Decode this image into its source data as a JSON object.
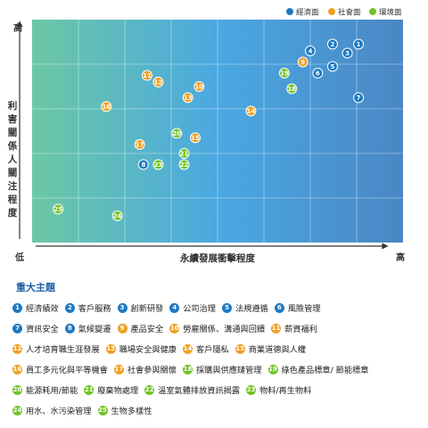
{
  "chart_data": {
    "type": "scatter",
    "ylabel": "利害關係人關注程度",
    "xlabel": "永續發展衝擊程度",
    "y_high_label": "高",
    "low_label": "低",
    "x_high_label": "高",
    "xlim": [
      0,
      100
    ],
    "ylim": [
      0,
      100
    ],
    "grid": true,
    "legend_position": "top-right",
    "legend": [
      {
        "name": "經濟面",
        "color": "#1d79c2"
      },
      {
        "name": "社會面",
        "color": "#efa024"
      },
      {
        "name": "環境面",
        "color": "#72c42a"
      }
    ],
    "points": [
      {
        "id": 1,
        "x": 88,
        "y": 89,
        "group": "economic"
      },
      {
        "id": 2,
        "x": 81,
        "y": 89,
        "group": "economic"
      },
      {
        "id": 3,
        "x": 85,
        "y": 85,
        "group": "economic"
      },
      {
        "id": 4,
        "x": 75,
        "y": 86,
        "group": "economic"
      },
      {
        "id": 5,
        "x": 81,
        "y": 79,
        "group": "economic"
      },
      {
        "id": 6,
        "x": 77,
        "y": 76,
        "group": "economic"
      },
      {
        "id": 7,
        "x": 88,
        "y": 65,
        "group": "economic"
      },
      {
        "id": 8,
        "x": 30,
        "y": 35,
        "group": "economic"
      },
      {
        "id": 9,
        "x": 73,
        "y": 81,
        "group": "social"
      },
      {
        "id": 10,
        "x": 45,
        "y": 70,
        "group": "social"
      },
      {
        "id": 11,
        "x": 31,
        "y": 75,
        "group": "social"
      },
      {
        "id": 12,
        "x": 34,
        "y": 72,
        "group": "social"
      },
      {
        "id": 13,
        "x": 42,
        "y": 65,
        "group": "social"
      },
      {
        "id": 14,
        "x": 59,
        "y": 59,
        "group": "social"
      },
      {
        "id": 15,
        "x": 44,
        "y": 47,
        "group": "social"
      },
      {
        "id": 16,
        "x": 20,
        "y": 61,
        "group": "social"
      },
      {
        "id": 17,
        "x": 29,
        "y": 44,
        "group": "social"
      },
      {
        "id": 18,
        "x": 70,
        "y": 69,
        "group": "environment"
      },
      {
        "id": 19,
        "x": 68,
        "y": 76,
        "group": "environment"
      },
      {
        "id": 20,
        "x": 39,
        "y": 49,
        "group": "environment"
      },
      {
        "id": 21,
        "x": 41,
        "y": 40,
        "group": "environment"
      },
      {
        "id": 22,
        "x": 41,
        "y": 35,
        "group": "environment"
      },
      {
        "id": 23,
        "x": 34,
        "y": 35,
        "group": "environment"
      },
      {
        "id": 24,
        "x": 23,
        "y": 12,
        "group": "environment"
      },
      {
        "id": 25,
        "x": 7,
        "y": 15,
        "group": "environment"
      }
    ]
  },
  "material_topics": {
    "title": "重大主題",
    "rows": [
      [
        {
          "id": 1,
          "label": "經濟績效",
          "group": "economic"
        },
        {
          "id": 2,
          "label": "客戶服務",
          "group": "economic"
        },
        {
          "id": 3,
          "label": "創新研發",
          "group": "economic"
        },
        {
          "id": 4,
          "label": "公司治理",
          "group": "economic"
        },
        {
          "id": 5,
          "label": "法規遵循",
          "group": "economic"
        },
        {
          "id": 6,
          "label": "風險管理",
          "group": "economic"
        }
      ],
      [
        {
          "id": 7,
          "label": "資訊安全",
          "group": "economic"
        },
        {
          "id": 8,
          "label": "氣候變遷",
          "group": "economic"
        },
        {
          "id": 9,
          "label": "產品安全",
          "group": "social"
        },
        {
          "id": 10,
          "label": "勞雇關係、溝通與回饋",
          "group": "social"
        },
        {
          "id": 11,
          "label": "薪資福利",
          "group": "social"
        }
      ],
      [
        {
          "id": 12,
          "label": "人才培育職生涯發展",
          "group": "social"
        },
        {
          "id": 13,
          "label": "職場安全與健康",
          "group": "social"
        },
        {
          "id": 14,
          "label": "客戶隱私",
          "group": "social"
        },
        {
          "id": 15,
          "label": "商業道德與人權",
          "group": "social"
        }
      ],
      [
        {
          "id": 16,
          "label": "員工多元化與平等機會",
          "group": "social"
        },
        {
          "id": 17,
          "label": "社會參與關懷",
          "group": "social"
        },
        {
          "id": 18,
          "label": "採購與供應鏈管理",
          "group": "environment"
        },
        {
          "id": 19,
          "label": "綠色產品標章/ 節能標章",
          "group": "environment"
        }
      ],
      [
        {
          "id": 20,
          "label": "能源耗用/節能",
          "group": "environment"
        },
        {
          "id": 21,
          "label": "廢棄物處理",
          "group": "environment"
        },
        {
          "id": 22,
          "label": "溫室氣體排放資訊揭露",
          "group": "environment"
        },
        {
          "id": 23,
          "label": "物料/再生物料",
          "group": "environment"
        }
      ],
      [
        {
          "id": 24,
          "label": "用水、水污染管理",
          "group": "environment"
        },
        {
          "id": 25,
          "label": "生物多樣性",
          "group": "environment"
        }
      ]
    ]
  }
}
